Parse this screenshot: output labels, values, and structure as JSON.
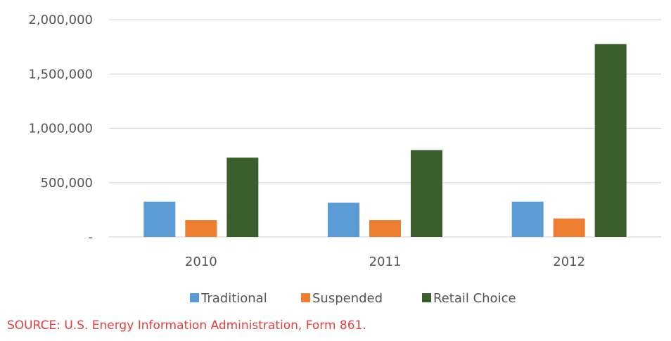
{
  "chart_data": {
    "type": "bar",
    "categories": [
      "2010",
      "2011",
      "2012"
    ],
    "series": [
      {
        "name": "Traditional",
        "values": [
          325000,
          315000,
          325000
        ],
        "color": "#5b9bd5"
      },
      {
        "name": "Suspended",
        "values": [
          155000,
          155000,
          170000
        ],
        "color": "#ed7d31"
      },
      {
        "name": "Retail Choice",
        "values": [
          730000,
          800000,
          1775000
        ],
        "color": "#3a5f2d"
      }
    ],
    "ylim": [
      0,
      2000000
    ],
    "yticks": [
      0,
      500000,
      1000000,
      1500000,
      2000000
    ],
    "ytick_labels": [
      "-",
      "500,000",
      "1,000,000",
      "1,500,000",
      "2,000,000"
    ],
    "title": "",
    "xlabel": "",
    "ylabel": "",
    "grid": true,
    "legend_position": "bottom"
  },
  "source_text": "SOURCE: U.S. Energy Information Administration, Form 861.",
  "colors": {
    "grid": "#d9d9d9",
    "source": "#e04040"
  }
}
